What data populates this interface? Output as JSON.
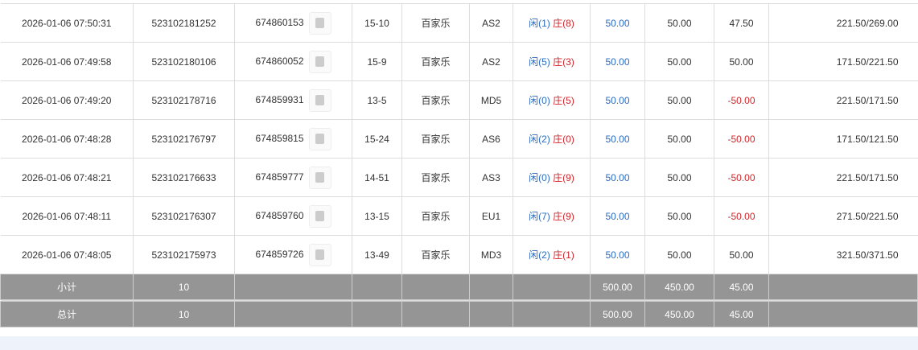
{
  "rows": [
    {
      "time": "2026-01-06 07:50:31",
      "bet_id": "523102181252",
      "game_id": "674860153",
      "round": "15-10",
      "game": "百家乐",
      "table": "AS2",
      "player": "闲(1)",
      "banker": "庄(8)",
      "bet": "50.00",
      "valid": "50.00",
      "win": "47.50",
      "win_neg": false,
      "balance": "221.50/269.00"
    },
    {
      "time": "2026-01-06 07:49:58",
      "bet_id": "523102180106",
      "game_id": "674860052",
      "round": "15-9",
      "game": "百家乐",
      "table": "AS2",
      "player": "闲(5)",
      "banker": "庄(3)",
      "bet": "50.00",
      "valid": "50.00",
      "win": "50.00",
      "win_neg": false,
      "balance": "171.50/221.50"
    },
    {
      "time": "2026-01-06 07:49:20",
      "bet_id": "523102178716",
      "game_id": "674859931",
      "round": "13-5",
      "game": "百家乐",
      "table": "MD5",
      "player": "闲(0)",
      "banker": "庄(5)",
      "bet": "50.00",
      "valid": "50.00",
      "win": "-50.00",
      "win_neg": true,
      "balance": "221.50/171.50"
    },
    {
      "time": "2026-01-06 07:48:28",
      "bet_id": "523102176797",
      "game_id": "674859815",
      "round": "15-24",
      "game": "百家乐",
      "table": "AS6",
      "player": "闲(2)",
      "banker": "庄(0)",
      "bet": "50.00",
      "valid": "50.00",
      "win": "-50.00",
      "win_neg": true,
      "balance": "171.50/121.50"
    },
    {
      "time": "2026-01-06 07:48:21",
      "bet_id": "523102176633",
      "game_id": "674859777",
      "round": "14-51",
      "game": "百家乐",
      "table": "AS3",
      "player": "闲(0)",
      "banker": "庄(9)",
      "bet": "50.00",
      "valid": "50.00",
      "win": "-50.00",
      "win_neg": true,
      "balance": "221.50/171.50"
    },
    {
      "time": "2026-01-06 07:48:11",
      "bet_id": "523102176307",
      "game_id": "674859760",
      "round": "13-15",
      "game": "百家乐",
      "table": "EU1",
      "player": "闲(7)",
      "banker": "庄(9)",
      "bet": "50.00",
      "valid": "50.00",
      "win": "-50.00",
      "win_neg": true,
      "balance": "271.50/221.50"
    },
    {
      "time": "2026-01-06 07:48:05",
      "bet_id": "523102175973",
      "game_id": "674859726",
      "round": "13-49",
      "game": "百家乐",
      "table": "MD3",
      "player": "闲(2)",
      "banker": "庄(1)",
      "bet": "50.00",
      "valid": "50.00",
      "win": "50.00",
      "win_neg": false,
      "balance": "321.50/371.50"
    }
  ],
  "subtotal": {
    "label": "小计",
    "count": "10",
    "bet": "500.00",
    "valid": "450.00",
    "win": "45.00"
  },
  "total": {
    "label": "总计",
    "count": "10",
    "bet": "500.00",
    "valid": "450.00",
    "win": "45.00"
  },
  "colors": {
    "player": "#2a6bc2",
    "banker": "#d0262b",
    "summary_bg": "#959595"
  }
}
